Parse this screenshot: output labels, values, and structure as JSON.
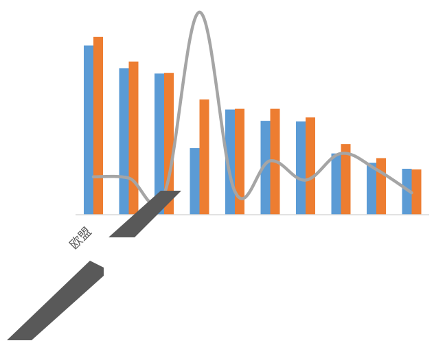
{
  "chart_data": {
    "type": "bar",
    "categories": [
      "欧盟",
      "",
      "",
      "",
      "",
      "",
      "",
      "",
      "",
      ""
    ],
    "series": [
      {
        "type": "bar",
        "color": "#5B9BD5",
        "values": [
          254,
          220,
          212,
          100,
          158,
          141,
          140,
          92,
          78,
          69
        ]
      },
      {
        "type": "bar",
        "color": "#ED7D31",
        "values": [
          267,
          230,
          213,
          173,
          159,
          159,
          146,
          106,
          85,
          68
        ]
      },
      {
        "type": "line",
        "color": "#A5A5A5",
        "smooth": true,
        "values": [
          57,
          55,
          31,
          304,
          35,
          81,
          52,
          92,
          68,
          33
        ]
      }
    ],
    "ylim": [
      0,
      310
    ],
    "title": "",
    "xlabel": "",
    "ylabel": "",
    "grid": false,
    "legend": "none"
  },
  "decor": {
    "shape_color": "#595959"
  }
}
